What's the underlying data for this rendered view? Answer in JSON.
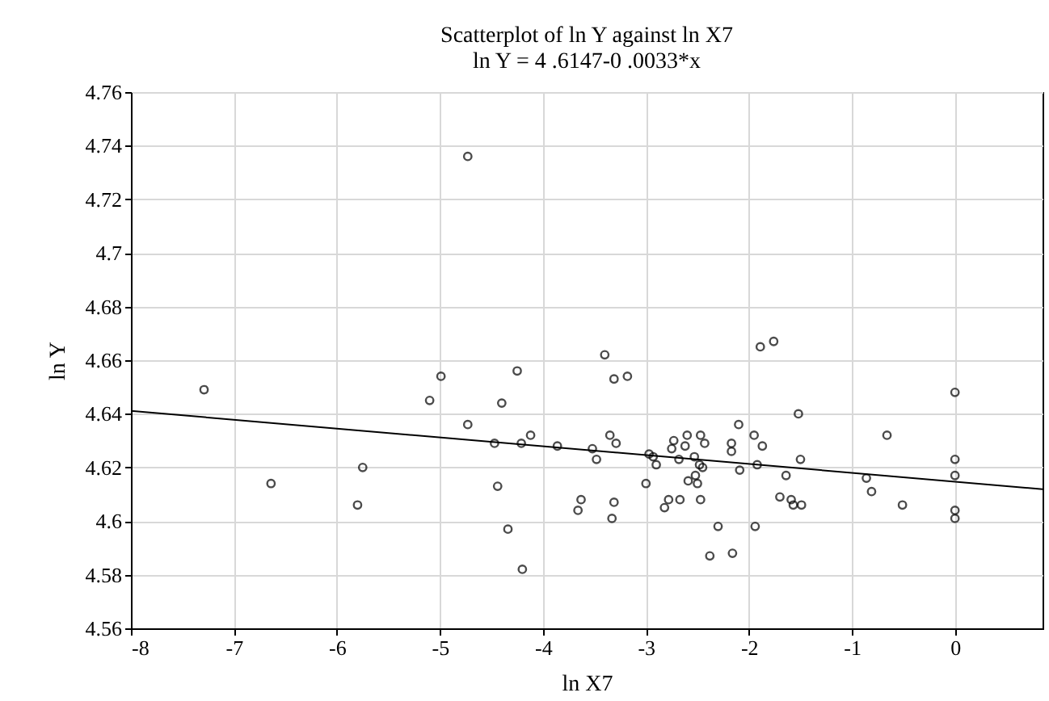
{
  "chart_data": {
    "type": "scatter",
    "title": "Scatterplot of ln Y against ln X7",
    "subtitle": "ln Y = 4 .6147-0 .0033*x",
    "xlabel": "ln X7",
    "ylabel": "ln Y",
    "xlim": [
      -8,
      0.85
    ],
    "xticks": [
      -8,
      -7,
      -6,
      -5,
      -4,
      -3,
      -2,
      -1,
      0
    ],
    "ylim": [
      4.56,
      4.76
    ],
    "yticks": [
      4.56,
      4.58,
      4.6,
      4.62,
      4.64,
      4.66,
      4.68,
      4.7,
      4.72,
      4.74,
      4.76
    ],
    "grid": true,
    "marker": "circle",
    "series": [
      {
        "type": "scatter",
        "color": "#000000",
        "x": [
          -7.29,
          -6.64,
          -5.75,
          -5.8,
          -4.73,
          -4.99,
          -5.1,
          -4.73,
          -4.25,
          -4.4,
          -4.47,
          -4.21,
          -4.12,
          -4.44,
          -4.34,
          -4.2,
          -3.86,
          -3.52,
          -3.48,
          -3.63,
          -3.66,
          -3.4,
          -3.31,
          -3.18,
          -3.35,
          -3.29,
          -3.31,
          -3.33,
          -3.0,
          -2.97,
          -2.93,
          -2.9,
          -2.78,
          -2.82,
          -2.67,
          -2.75,
          -2.73,
          -2.6,
          -2.62,
          -2.68,
          -2.59,
          -2.53,
          -2.52,
          -2.5,
          -2.47,
          -2.43,
          -2.48,
          -2.45,
          -2.47,
          -2.3,
          -2.38,
          -2.17,
          -2.17,
          -2.16,
          -2.1,
          -2.09,
          -1.89,
          -1.76,
          -1.95,
          -1.87,
          -1.92,
          -1.94,
          -1.64,
          -1.7,
          -1.59,
          -1.57,
          -1.49,
          -1.52,
          -1.5,
          -0.86,
          -0.81,
          -0.66,
          -0.51,
          0,
          0,
          0,
          0,
          0
        ],
        "values": [
          4.649,
          4.614,
          4.62,
          4.606,
          4.736,
          4.654,
          4.645,
          4.636,
          4.656,
          4.644,
          4.629,
          4.629,
          4.632,
          4.613,
          4.597,
          4.582,
          4.628,
          4.627,
          4.623,
          4.608,
          4.604,
          4.662,
          4.653,
          4.654,
          4.632,
          4.629,
          4.607,
          4.601,
          4.614,
          4.625,
          4.624,
          4.621,
          4.608,
          4.605,
          4.608,
          4.627,
          4.63,
          4.632,
          4.628,
          4.623,
          4.615,
          4.624,
          4.617,
          4.614,
          4.632,
          4.629,
          4.621,
          4.62,
          4.608,
          4.598,
          4.587,
          4.629,
          4.626,
          4.588,
          4.636,
          4.619,
          4.665,
          4.667,
          4.632,
          4.628,
          4.621,
          4.598,
          4.617,
          4.609,
          4.608,
          4.606,
          4.606,
          4.64,
          4.623,
          4.616,
          4.611,
          4.632,
          4.606,
          4.648,
          4.623,
          4.617,
          4.604,
          4.601
        ]
      },
      {
        "type": "line",
        "color": "#000000",
        "marker": "none",
        "x": [
          -8,
          0.85
        ],
        "values": [
          4.6411,
          4.6119
        ]
      }
    ]
  }
}
